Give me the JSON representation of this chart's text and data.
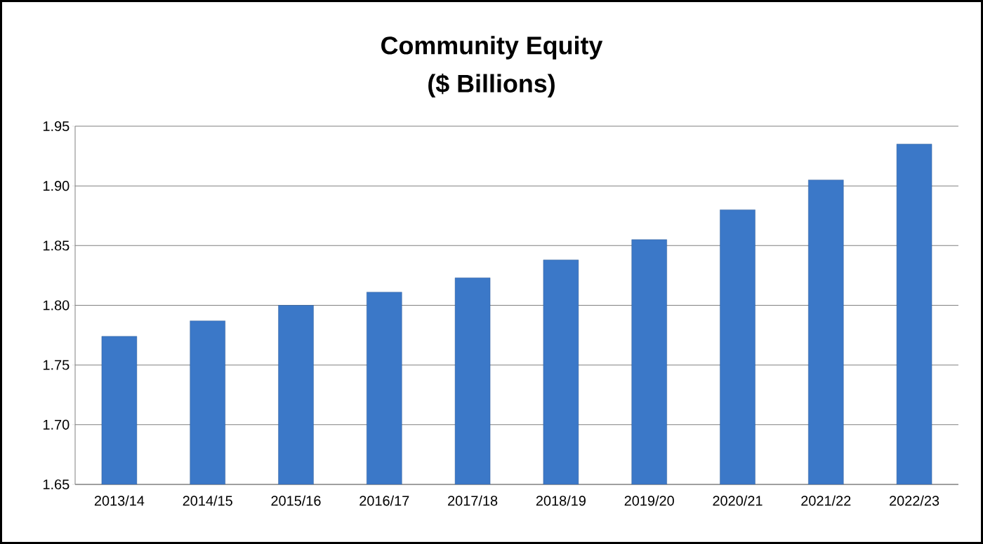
{
  "chart_data": {
    "type": "bar",
    "title": "Community Equity",
    "subtitle": "($ Billions)",
    "categories": [
      "2013/14",
      "2014/15",
      "2015/16",
      "2016/17",
      "2017/18",
      "2018/19",
      "2019/20",
      "2020/21",
      "2021/22",
      "2022/23"
    ],
    "values": [
      1.774,
      1.787,
      1.8,
      1.811,
      1.823,
      1.838,
      1.855,
      1.88,
      1.905,
      1.935
    ],
    "color": "#3b78c8",
    "ylim": [
      1.65,
      1.95
    ],
    "yticks": [
      {
        "value": 1.65,
        "label": "1.65"
      },
      {
        "value": 1.7,
        "label": "1.70"
      },
      {
        "value": 1.75,
        "label": "1.75"
      },
      {
        "value": 1.8,
        "label": "1.80"
      },
      {
        "value": 1.85,
        "label": "1.85"
      },
      {
        "value": 1.9,
        "label": "1.90"
      },
      {
        "value": 1.95,
        "label": "1.95"
      }
    ],
    "grid": "y"
  }
}
